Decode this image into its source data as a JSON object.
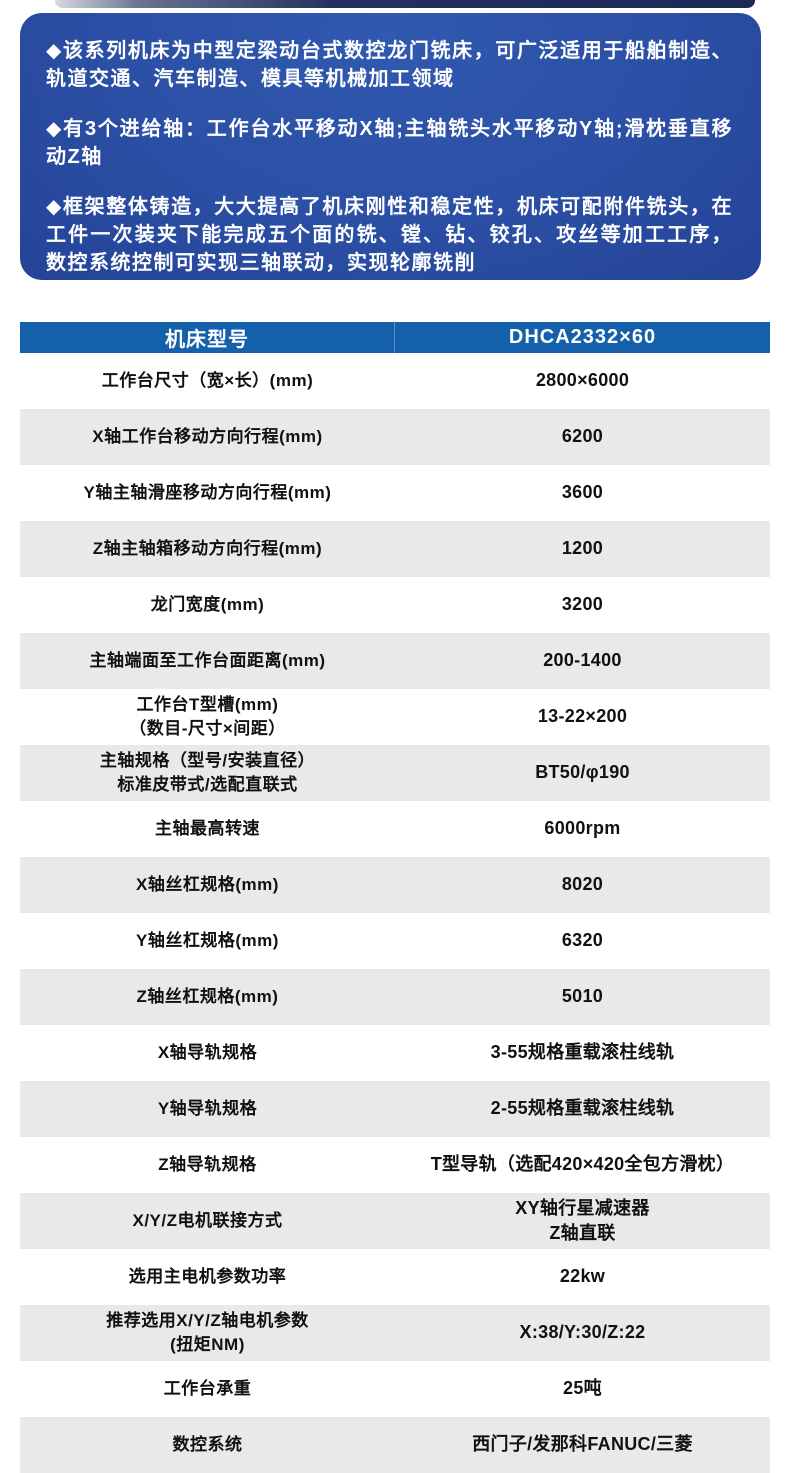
{
  "colors": {
    "panel_blue": "#2b4fa4",
    "header_blue": "#1560ab",
    "row_gray": "#e9e9e9",
    "top_bar_navy": "#1b2a55",
    "text_dark": "#111111",
    "text_light": "#ffffff"
  },
  "intro": {
    "paragraphs": [
      "◆该系列机床为中型定梁动台式数控龙门铣床，可广泛适用于船舶制造、轨道交通、汽车制造、模具等机械加工领域",
      "◆有3个进给轴：工作台水平移动X轴;主轴铣头水平移动Y轴;滑枕垂直移动Z轴",
      "◆框架整体铸造，大大提高了机床刚性和稳定性，机床可配附件铣头，在工件一次装夹下能完成五个面的铣、镗、钻、铰孔、攻丝等加工工序，数控系统控制可实现三轴联动，实现轮廓铣削"
    ]
  },
  "table": {
    "header": {
      "param_label": "机床型号",
      "model": "DHCA2332×60"
    },
    "rows": [
      {
        "label": "工作台尺寸（宽×长）(mm)",
        "value": "2800×6000"
      },
      {
        "label": "X轴工作台移动方向行程(mm)",
        "value": "6200"
      },
      {
        "label": "Y轴主轴滑座移动方向行程(mm)",
        "value": "3600"
      },
      {
        "label": "Z轴主轴箱移动方向行程(mm)",
        "value": "1200"
      },
      {
        "label": "龙门宽度(mm)",
        "value": "3200"
      },
      {
        "label": "主轴端面至工作台面距离(mm)",
        "value": "200-1400"
      },
      {
        "label": "工作台T型槽(mm)\n（数目-尺寸×间距）",
        "value": "13-22×200"
      },
      {
        "label": "主轴规格（型号/安装直径）\n标准皮带式/选配直联式",
        "value": "BT50/φ190"
      },
      {
        "label": "主轴最高转速",
        "value": "6000rpm"
      },
      {
        "label": "X轴丝杠规格(mm)",
        "value": "8020"
      },
      {
        "label": "Y轴丝杠规格(mm)",
        "value": "6320"
      },
      {
        "label": "Z轴丝杠规格(mm)",
        "value": "5010"
      },
      {
        "label": "X轴导轨规格",
        "value": "3-55规格重载滚柱线轨"
      },
      {
        "label": "Y轴导轨规格",
        "value": "2-55规格重载滚柱线轨"
      },
      {
        "label": "Z轴导轨规格",
        "value": "T型导轨（选配420×420全包方滑枕）"
      },
      {
        "label": "X/Y/Z电机联接方式",
        "value": "XY轴行星减速器\nZ轴直联"
      },
      {
        "label": "选用主电机参数功率",
        "value": "22kw"
      },
      {
        "label": "推荐选用X/Y/Z轴电机参数\n(扭矩NM)",
        "value": "X:38/Y:30/Z:22"
      },
      {
        "label": "工作台承重",
        "value": "25吨"
      },
      {
        "label": "数控系统",
        "value": "西门子/发那科FANUC/三菱"
      }
    ]
  }
}
